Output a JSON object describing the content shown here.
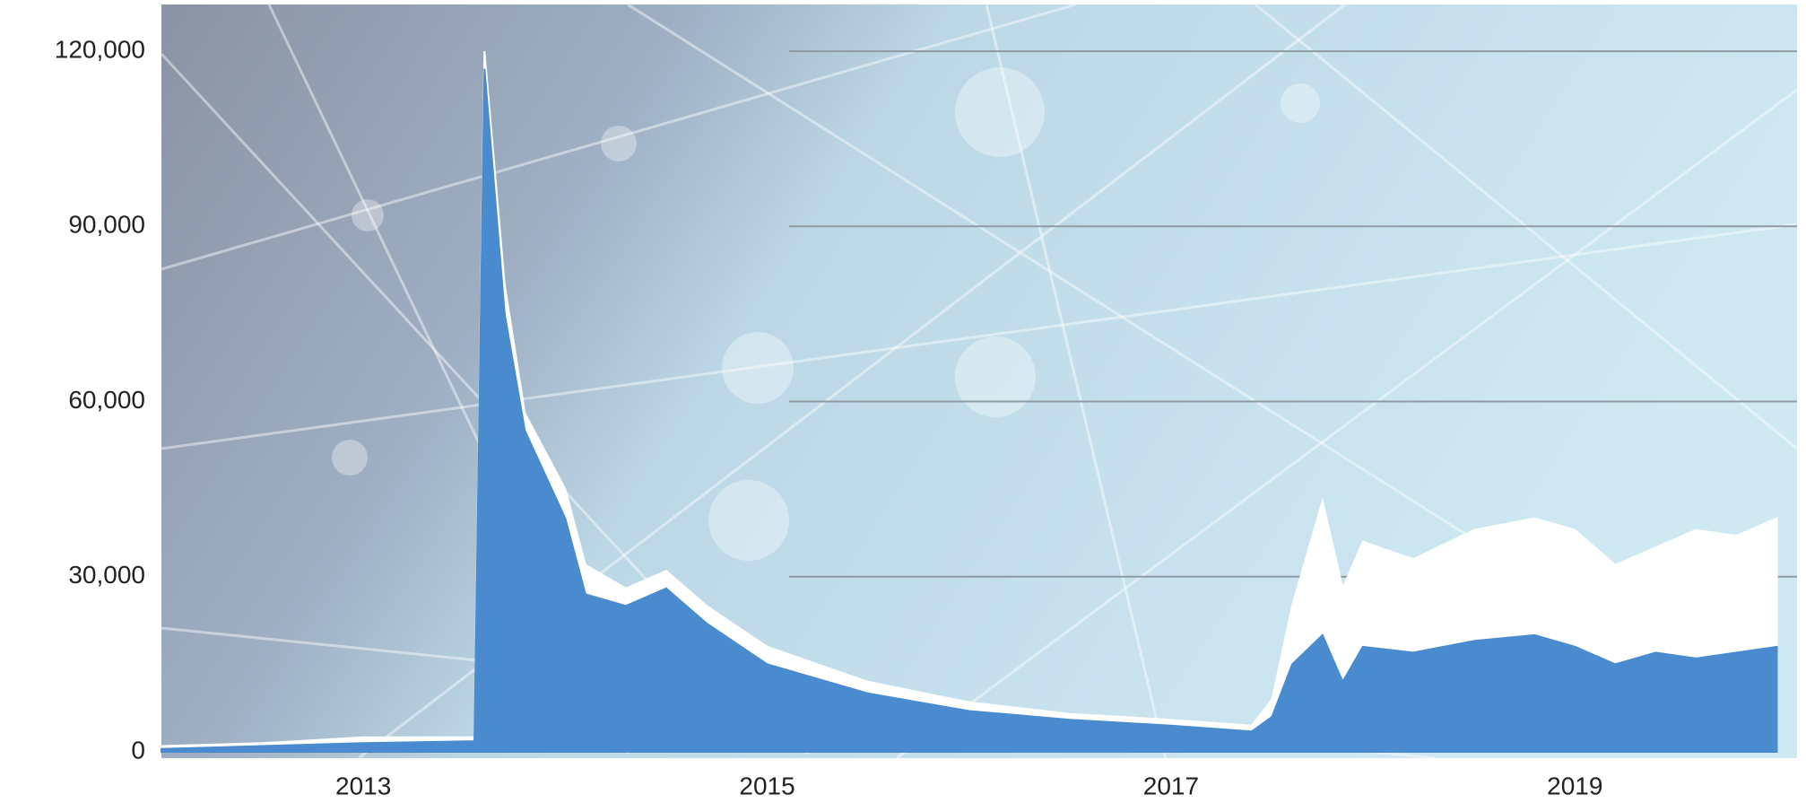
{
  "chart_data": {
    "type": "area",
    "x": [
      2012.0,
      2012.5,
      2013.0,
      2013.5,
      2013.55,
      2013.6,
      2013.7,
      2013.8,
      2014.0,
      2014.1,
      2014.3,
      2014.5,
      2014.7,
      2015.0,
      2015.5,
      2016.0,
      2016.5,
      2017.0,
      2017.4,
      2017.5,
      2017.6,
      2017.75,
      2017.85,
      2017.95,
      2018.2,
      2018.5,
      2018.8,
      2019.0,
      2019.2,
      2019.4,
      2019.6,
      2019.8,
      2020.0
    ],
    "series": [
      {
        "color": "#ffffff",
        "values": [
          1000,
          1500,
          2500,
          2500,
          2500,
          120000,
          80000,
          58000,
          45000,
          32000,
          28000,
          31000,
          25000,
          18000,
          12000,
          8500,
          6500,
          5500,
          4500,
          9000,
          25000,
          43000,
          28000,
          36000,
          33000,
          38000,
          40000,
          38000,
          32000,
          35000,
          38000,
          37000,
          40000
        ]
      },
      {
        "color": "#4a8bd0",
        "values": [
          500,
          1000,
          1500,
          1800,
          1800,
          117000,
          75000,
          55000,
          40000,
          27000,
          25000,
          28000,
          22000,
          15000,
          10000,
          7000,
          5500,
          4500,
          3500,
          6000,
          15000,
          20000,
          12000,
          18000,
          17000,
          19000,
          20000,
          18000,
          15000,
          17000,
          16000,
          17000,
          18000
        ]
      }
    ],
    "xlim": [
      2012.0,
      2020.1
    ],
    "xticks": [
      2013,
      2015,
      2017,
      2019
    ],
    "ylim": [
      0,
      128000
    ],
    "yticks": [
      0,
      {
        "value": 30000,
        "label": "30,000"
      },
      {
        "value": 60000,
        "label": "60,000"
      },
      {
        "value": 90000,
        "label": "90,000"
      },
      {
        "value": 120000,
        "label": "120,000"
      }
    ],
    "grid": true
  }
}
